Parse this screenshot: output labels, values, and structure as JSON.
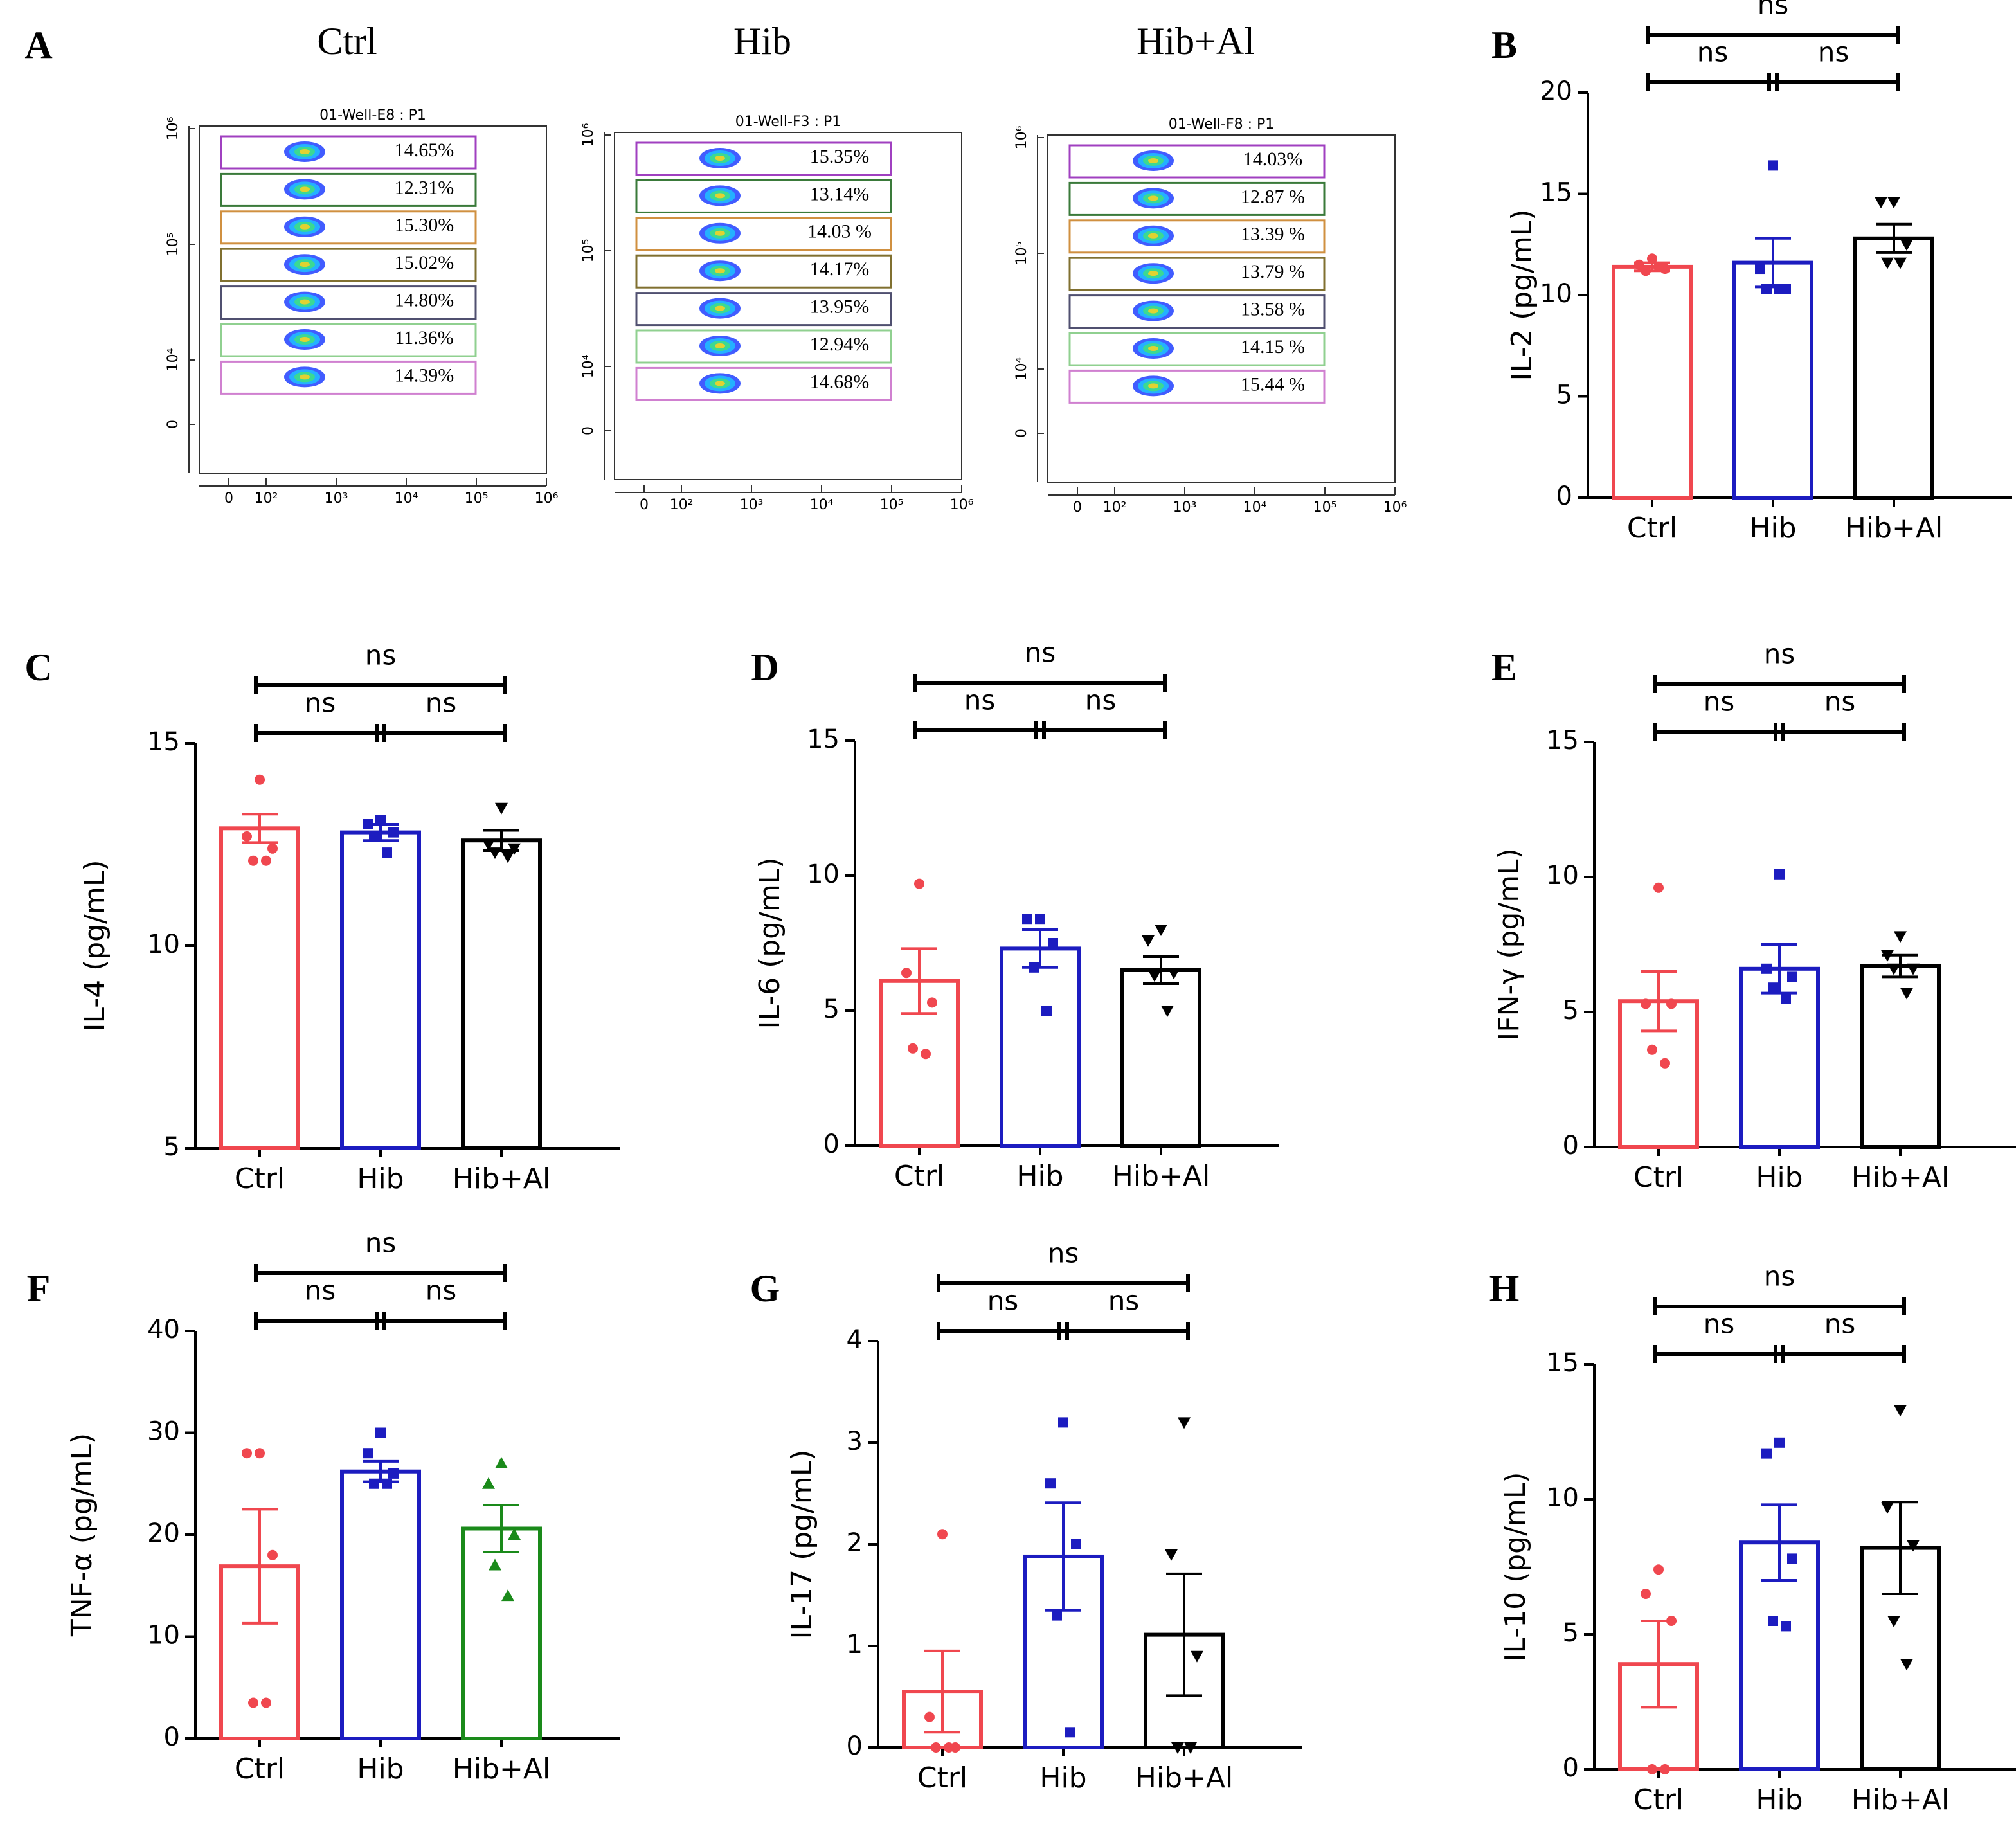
{
  "chart_data": [
    {
      "type": "flow",
      "label": "A",
      "title": "Ctrl",
      "plot_title": "01-Well-E8 : P1",
      "values": [
        14.65,
        12.31,
        15.3,
        15.02,
        14.8,
        11.36,
        14.39
      ],
      "value_labels": [
        "14.65%",
        "12.31%",
        "15.30%",
        "15.02%",
        "14.80%",
        "11.36%",
        "14.39%"
      ],
      "colors": [
        "#a040c0",
        "#3a7a3a",
        "#d09040",
        "#807030",
        "#505070",
        "#90d090",
        "#d080d0"
      ],
      "xlim": [
        0,
        1000000
      ],
      "xticks": [
        0,
        {
          "value": 100,
          "label": "10²"
        },
        {
          "value": 1000,
          "label": "10³"
        },
        {
          "value": 10000,
          "label": "10⁴"
        },
        {
          "value": 100000,
          "label": "10⁵"
        },
        {
          "value": 1000000,
          "label": "10⁶"
        }
      ],
      "yticks": [
        0,
        {
          "value": 10000,
          "label": "10⁴"
        },
        {
          "value": 100000,
          "label": "10⁵"
        },
        {
          "value": 1000000,
          "label": "10⁶"
        }
      ]
    },
    {
      "type": "flow",
      "title": "Hib",
      "plot_title": "01-Well-F3 : P1",
      "values": [
        15.35,
        13.14,
        14.03,
        14.17,
        13.95,
        12.94,
        14.68
      ],
      "value_labels": [
        "15.35%",
        "13.14%",
        "14.03 %",
        "14.17%",
        "13.95%",
        "12.94%",
        "14.68%"
      ],
      "colors": [
        "#a040c0",
        "#3a7a3a",
        "#d09040",
        "#807030",
        "#505070",
        "#90d090",
        "#d080d0"
      ],
      "xlim": [
        0,
        1000000
      ],
      "xticks": [
        0,
        {
          "value": 100,
          "label": "10²"
        },
        {
          "value": 1000,
          "label": "10³"
        },
        {
          "value": 10000,
          "label": "10⁴"
        },
        {
          "value": 100000,
          "label": "10⁵"
        },
        {
          "value": 1000000,
          "label": "10⁶"
        }
      ],
      "yticks": [
        0,
        {
          "value": 10000,
          "label": "10⁴"
        },
        {
          "value": 100000,
          "label": "10⁵"
        },
        {
          "value": 1000000,
          "label": "10⁶"
        }
      ]
    },
    {
      "type": "flow",
      "title": "Hib+Al",
      "plot_title": "01-Well-F8 : P1",
      "values": [
        14.03,
        12.87,
        13.39,
        13.79,
        13.58,
        14.15,
        15.44
      ],
      "value_labels": [
        "14.03%",
        "12.87 %",
        "13.39 %",
        "13.79 %",
        "13.58 %",
        "14.15 %",
        "15.44 %"
      ],
      "colors": [
        "#a040c0",
        "#3a7a3a",
        "#d09040",
        "#807030",
        "#505070",
        "#90d090",
        "#d080d0"
      ],
      "xlim": [
        0,
        1000000
      ],
      "xticks": [
        0,
        {
          "value": 100,
          "label": "10²"
        },
        {
          "value": 1000,
          "label": "10³"
        },
        {
          "value": 10000,
          "label": "10⁴"
        },
        {
          "value": 100000,
          "label": "10⁵"
        },
        {
          "value": 1000000,
          "label": "10⁶"
        }
      ],
      "yticks": [
        0,
        {
          "value": 10000,
          "label": "10⁴"
        },
        {
          "value": 100000,
          "label": "10⁵"
        },
        {
          "value": 1000000,
          "label": "10⁶"
        }
      ]
    },
    {
      "type": "bar",
      "label": "B",
      "ylabel": "IL-2 (pg/mL)",
      "categories": [
        "Ctrl",
        "Hib",
        "Hib+Al"
      ],
      "values": [
        11.4,
        11.6,
        12.8
      ],
      "errors": [
        0.2,
        1.2,
        0.7
      ],
      "points": [
        [
          11.8,
          11.5,
          11.3,
          11.2,
          11.4
        ],
        [
          16.4,
          11.3,
          10.3,
          10.3,
          10.3
        ],
        [
          14.6,
          14.6,
          12.5,
          11.6,
          11.6
        ]
      ],
      "colors": [
        "#f0474f",
        "#1c1cc0",
        "#000000"
      ],
      "markers": [
        "circle",
        "square",
        "triangle-down"
      ],
      "ylim": [
        0,
        20
      ],
      "yticks": [
        0,
        5,
        10,
        15,
        20
      ],
      "comparisons": [
        {
          "pair": [
            0,
            2
          ],
          "label": "ns"
        },
        {
          "pair": [
            0,
            1
          ],
          "label": "ns"
        },
        {
          "pair": [
            1,
            2
          ],
          "label": "ns"
        }
      ]
    },
    {
      "type": "bar",
      "label": "C",
      "ylabel": "IL-4 (pg/mL)",
      "categories": [
        "Ctrl",
        "Hib",
        "Hib+Al"
      ],
      "values": [
        12.9,
        12.8,
        12.6
      ],
      "errors": [
        0.35,
        0.2,
        0.25
      ],
      "points": [
        [
          14.1,
          12.7,
          12.4,
          12.1,
          12.1
        ],
        [
          13.1,
          13.0,
          12.8,
          12.7,
          12.3
        ],
        [
          13.4,
          12.5,
          12.4,
          12.3,
          12.2
        ]
      ],
      "colors": [
        "#f0474f",
        "#1c1cc0",
        "#000000"
      ],
      "markers": [
        "circle",
        "square",
        "triangle-down"
      ],
      "ylim": [
        5,
        15
      ],
      "yticks": [
        5,
        10,
        15
      ],
      "comparisons": [
        {
          "pair": [
            0,
            2
          ],
          "label": "ns"
        },
        {
          "pair": [
            0,
            1
          ],
          "label": "ns"
        },
        {
          "pair": [
            1,
            2
          ],
          "label": "ns"
        }
      ]
    },
    {
      "type": "bar",
      "label": "D",
      "ylabel": "IL-6 (pg/mL)",
      "categories": [
        "Ctrl",
        "Hib",
        "Hib+Al"
      ],
      "values": [
        6.1,
        7.3,
        6.5
      ],
      "errors": [
        1.2,
        0.7,
        0.5
      ],
      "points": [
        [
          9.7,
          6.4,
          5.3,
          3.6,
          3.4
        ],
        [
          8.4,
          8.4,
          7.5,
          6.6,
          5.0
        ],
        [
          8.0,
          7.6,
          6.4,
          6.3,
          5.0
        ]
      ],
      "colors": [
        "#f0474f",
        "#1c1cc0",
        "#000000"
      ],
      "markers": [
        "circle",
        "square",
        "triangle-down"
      ],
      "ylim": [
        0,
        15
      ],
      "yticks": [
        0,
        5,
        10,
        15
      ],
      "comparisons": [
        {
          "pair": [
            0,
            2
          ],
          "label": "ns"
        },
        {
          "pair": [
            0,
            1
          ],
          "label": "ns"
        },
        {
          "pair": [
            1,
            2
          ],
          "label": "ns"
        }
      ]
    },
    {
      "type": "bar",
      "label": "E",
      "ylabel": "IFN-γ (pg/mL)",
      "categories": [
        "Ctrl",
        "Hib",
        "Hib+Al"
      ],
      "values": [
        5.4,
        6.6,
        6.7
      ],
      "errors": [
        1.1,
        0.9,
        0.4
      ],
      "points": [
        [
          9.6,
          5.3,
          5.3,
          3.6,
          3.1
        ],
        [
          10.1,
          6.6,
          6.3,
          5.9,
          5.5
        ],
        [
          7.8,
          7.1,
          6.6,
          6.6,
          5.7
        ]
      ],
      "colors": [
        "#f0474f",
        "#1c1cc0",
        "#000000"
      ],
      "markers": [
        "circle",
        "square",
        "triangle-down"
      ],
      "ylim": [
        0,
        15
      ],
      "yticks": [
        0,
        5,
        10,
        15
      ],
      "comparisons": [
        {
          "pair": [
            0,
            2
          ],
          "label": "ns"
        },
        {
          "pair": [
            0,
            1
          ],
          "label": "ns"
        },
        {
          "pair": [
            1,
            2
          ],
          "label": "ns"
        }
      ]
    },
    {
      "type": "bar",
      "label": "F",
      "ylabel": "TNF-α (pg/mL)",
      "categories": [
        "Ctrl",
        "Hib",
        "Hib+Al"
      ],
      "values": [
        16.9,
        26.2,
        20.6
      ],
      "errors": [
        5.6,
        1.0,
        2.3
      ],
      "points": [
        [
          28,
          28,
          18,
          3.5,
          3.5
        ],
        [
          30,
          28,
          26,
          25,
          25
        ],
        [
          27,
          25,
          20,
          17,
          14
        ]
      ],
      "colors": [
        "#f0474f",
        "#1c1cc0",
        "#1a8a1a"
      ],
      "markers": [
        "circle",
        "square",
        "triangle-up"
      ],
      "ylim": [
        0,
        40
      ],
      "yticks": [
        0,
        10,
        20,
        30,
        40
      ],
      "comparisons": [
        {
          "pair": [
            0,
            2
          ],
          "label": "ns"
        },
        {
          "pair": [
            0,
            1
          ],
          "label": "ns"
        },
        {
          "pair": [
            1,
            2
          ],
          "label": "ns"
        }
      ]
    },
    {
      "type": "bar",
      "label": "G",
      "ylabel": "IL-17 (pg/mL)",
      "categories": [
        "Ctrl",
        "Hib",
        "Hib+Al"
      ],
      "values": [
        0.55,
        1.88,
        1.11
      ],
      "errors": [
        0.4,
        0.53,
        0.6
      ],
      "points": [
        [
          2.1,
          0.3,
          0,
          0,
          0
        ],
        [
          3.2,
          2.6,
          2.0,
          1.3,
          0.15
        ],
        [
          3.2,
          1.9,
          0.9,
          0,
          0
        ]
      ],
      "colors": [
        "#f0474f",
        "#1c1cc0",
        "#000000"
      ],
      "markers": [
        "circle",
        "square",
        "triangle-down"
      ],
      "ylim": [
        0,
        4
      ],
      "yticks": [
        0,
        1,
        2,
        3,
        4
      ],
      "comparisons": [
        {
          "pair": [
            0,
            2
          ],
          "label": "ns"
        },
        {
          "pair": [
            0,
            1
          ],
          "label": "ns"
        },
        {
          "pair": [
            1,
            2
          ],
          "label": "ns"
        }
      ]
    },
    {
      "type": "bar",
      "label": "H",
      "ylabel": "IL-10 (pg/mL)",
      "categories": [
        "Ctrl",
        "Hib",
        "Hib+Al"
      ],
      "values": [
        3.9,
        8.4,
        8.2
      ],
      "errors": [
        1.6,
        1.4,
        1.7
      ],
      "points": [
        [
          7.4,
          6.5,
          5.5,
          0,
          0
        ],
        [
          12.1,
          11.7,
          7.8,
          5.5,
          5.3
        ],
        [
          13.3,
          9.7,
          8.3,
          5.5,
          3.9
        ]
      ],
      "colors": [
        "#f0474f",
        "#1c1cc0",
        "#000000"
      ],
      "markers": [
        "circle",
        "square",
        "triangle-down"
      ],
      "ylim": [
        0,
        15
      ],
      "yticks": [
        0,
        5,
        10,
        15
      ],
      "comparisons": [
        {
          "pair": [
            0,
            2
          ],
          "label": "ns"
        },
        {
          "pair": [
            0,
            1
          ],
          "label": "ns"
        },
        {
          "pair": [
            1,
            2
          ],
          "label": "ns"
        }
      ]
    }
  ]
}
